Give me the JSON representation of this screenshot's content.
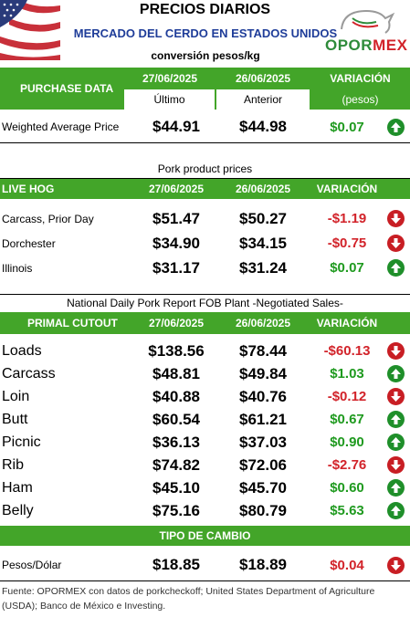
{
  "header": {
    "title": "PRECIOS DIARIOS",
    "subtitle": "MERCADO DEL CERDO EN ESTADOS UNIDOS",
    "conversion": "conversión pesos/kg",
    "logo_part1": "OPOR",
    "logo_part2": "MEX"
  },
  "colors": {
    "header_green": "#43a529",
    "positive": "#1f9a1f",
    "negative": "#d2232a",
    "subtitle_blue": "#1f3d99"
  },
  "purchase": {
    "label": "PURCHASE DATA",
    "date_current": "27/06/2025",
    "date_previous": "26/06/2025",
    "variation_label": "VARIACIÓN",
    "sub_current": "Último",
    "sub_previous": "Anterior",
    "sub_variation": "(pesos)",
    "row": {
      "label": "Weighted Average Price",
      "current": "$44.91",
      "previous": "$44.98",
      "variation": "$0.07",
      "direction": "up"
    }
  },
  "pork": {
    "title": "Pork product prices",
    "label": "LIVE HOG",
    "date_current": "27/06/2025",
    "date_previous": "26/06/2025",
    "variation_label": "VARIACIÓN",
    "rows": [
      {
        "label": "Carcass, Prior Day",
        "current": "$51.47",
        "previous": "$50.27",
        "variation": "-$1.19",
        "direction": "down"
      },
      {
        "label": "Dorchester",
        "current": "$34.90",
        "previous": "$34.15",
        "variation": "-$0.75",
        "direction": "down"
      },
      {
        "label": "Illinois",
        "current": "$31.17",
        "previous": "$31.24",
        "variation": "$0.07",
        "direction": "up"
      }
    ]
  },
  "primal": {
    "title": "National Daily Pork Report FOB Plant -Negotiated Sales-",
    "label": "PRIMAL CUTOUT",
    "date_current": "27/06/2025",
    "date_previous": "26/06/2025",
    "variation_label": "VARIACIÓN",
    "rows": [
      {
        "label": "Loads",
        "current": "$138.56",
        "previous": "$78.44",
        "variation": "-$60.13",
        "direction": "down"
      },
      {
        "label": "Carcass",
        "current": "$48.81",
        "previous": "$49.84",
        "variation": "$1.03",
        "direction": "up"
      },
      {
        "label": "Loin",
        "current": "$40.88",
        "previous": "$40.76",
        "variation": "-$0.12",
        "direction": "down"
      },
      {
        "label": "Butt",
        "current": "$60.54",
        "previous": "$61.21",
        "variation": "$0.67",
        "direction": "up"
      },
      {
        "label": "Picnic",
        "current": "$36.13",
        "previous": "$37.03",
        "variation": "$0.90",
        "direction": "up"
      },
      {
        "label": "Rib",
        "current": "$74.82",
        "previous": "$72.06",
        "variation": "-$2.76",
        "direction": "down"
      },
      {
        "label": "Ham",
        "current": "$45.10",
        "previous": "$45.70",
        "variation": "$0.60",
        "direction": "up"
      },
      {
        "label": "Belly",
        "current": "$75.16",
        "previous": "$80.79",
        "variation": "$5.63",
        "direction": "up"
      }
    ]
  },
  "exchange": {
    "title": "TIPO DE CAMBIO",
    "row": {
      "label": "Pesos/Dólar",
      "current": "$18.85",
      "previous": "$18.89",
      "variation": "$0.04",
      "direction": "down"
    }
  },
  "footer": {
    "text": "Fuente: OPORMEX con datos de porkcheckoff; United States Department of Agriculture (USDA); Banco de México e Investing."
  }
}
